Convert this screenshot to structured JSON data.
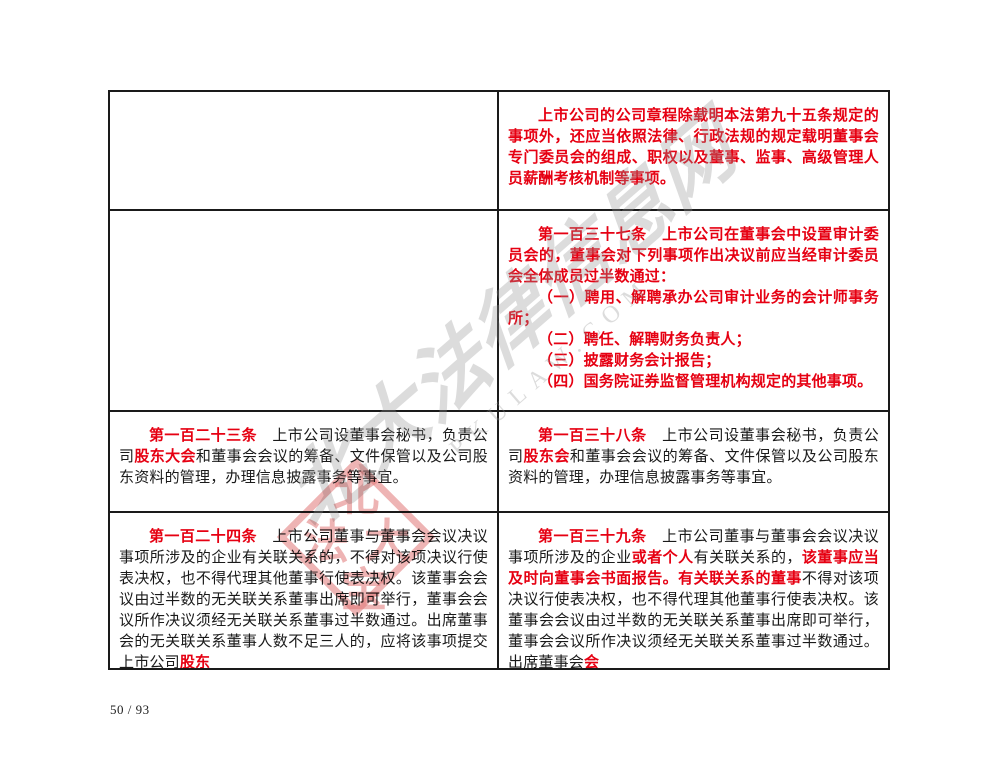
{
  "document": {
    "footer": {
      "page_number": "50 / 93"
    },
    "watermark": {
      "diagonal_text": "北大法律信息网",
      "diagonal_subtext": "PKULAW.COM",
      "seal_chars": {
        "top": "北",
        "left": "法",
        "right": "大",
        "bottom": "宝"
      }
    },
    "comparison_table": {
      "rows": [
        {
          "left": [],
          "right": [
            {
              "runs": [
                {
                  "text": "上市公司的公司章程除载明本法第九十五条规定的事项外，还应当依照法律、行政法规的规定载明董事会专门委员会的组成、职权以及董事、监事、高级管理人员薪酬考核机制等事项。",
                  "style": "red-bold"
                }
              ]
            }
          ]
        },
        {
          "left": [],
          "right": [
            {
              "runs": [
                {
                  "text": "第一百三十七条　上市公司在董事会中设置审计委员会的，董事会对下列事项作出决议前应当经审计委员会全体成员过半数通过：",
                  "style": "red-bold"
                }
              ]
            },
            {
              "runs": [
                {
                  "text": "（一）聘用、解聘承办公司审计业务的会计师事务所；",
                  "style": "red-bold"
                }
              ]
            },
            {
              "runs": [
                {
                  "text": "（二）聘任、解聘财务负责人；",
                  "style": "red-bold"
                }
              ]
            },
            {
              "runs": [
                {
                  "text": "（三）披露财务会计报告；",
                  "style": "red-bold"
                }
              ]
            },
            {
              "runs": [
                {
                  "text": "（四）国务院证券监督管理机构规定的其他事项。",
                  "style": "red-bold"
                }
              ]
            }
          ]
        },
        {
          "left": [
            {
              "runs": [
                {
                  "text": "第一百二十三条",
                  "style": "red-bold"
                },
                {
                  "text": "　上市公司设董事会秘书，负责公司",
                  "style": "black"
                },
                {
                  "text": "股东大会",
                  "style": "red-bold"
                },
                {
                  "text": "和董事会会议的筹备、文件保管以及公司股东资料的管理，办理信息披露事务等事宜。",
                  "style": "black"
                }
              ]
            }
          ],
          "right": [
            {
              "runs": [
                {
                  "text": "第一百三十八条",
                  "style": "red-bold"
                },
                {
                  "text": "　上市公司设董事会秘书，负责公司",
                  "style": "black"
                },
                {
                  "text": "股东会",
                  "style": "red-bold"
                },
                {
                  "text": "和董事会会议的筹备、文件保管以及公司股东资料的管理，办理信息披露事务等事宜。",
                  "style": "black"
                }
              ]
            }
          ]
        },
        {
          "left": [
            {
              "runs": [
                {
                  "text": "第一百二十四条",
                  "style": "red-bold"
                },
                {
                  "text": "　上市公司董事与董事会会议决议事项所涉及的企业有关联关系的，不得对该项决议行使表决权，也不得代理其他董事行使表决权。该董事会会议由过半数的无关联关系董事出席即可举行，董事会会议所作决议须经无关联关系董事过半数通过。出席董事会的无关联关系董事人数不足三人的，应将该事项提交上市公司",
                  "style": "black"
                },
                {
                  "text": "股东",
                  "style": "red-bold"
                }
              ]
            }
          ],
          "right": [
            {
              "runs": [
                {
                  "text": "第一百三十九条",
                  "style": "red-bold"
                },
                {
                  "text": "　上市公司董事与董事会会议决议事项所涉及的企业",
                  "style": "black"
                },
                {
                  "text": "或者个人",
                  "style": "red-bold"
                },
                {
                  "text": "有关联关系的，",
                  "style": "black"
                },
                {
                  "text": "该董事应当及时向董事会书面报告。有关联关系的董事",
                  "style": "red-bold"
                },
                {
                  "text": "不得对该项决议行使表决权，也不得代理其他董事行使表决权。该董事会会议由过半数的无关联关系董事出席即可举行，董事会会议所作决议须经无关联关系董事过半数通过。出席董事会",
                  "style": "black"
                },
                {
                  "text": "会",
                  "style": "red-bold"
                }
              ]
            }
          ]
        }
      ]
    }
  }
}
